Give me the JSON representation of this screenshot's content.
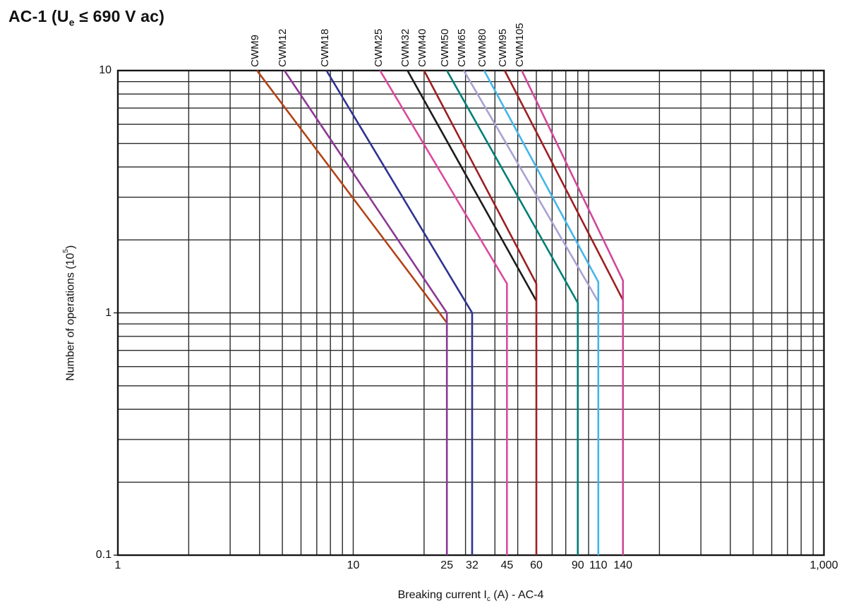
{
  "title": {
    "prefix": "AC-1 (U",
    "sub": "e",
    "suffix": " ≤ 690 V ac)"
  },
  "x_axis": {
    "title_prefix": "Breaking current I",
    "title_sub": "c",
    "title_suffix": " (A) - AC-4"
  },
  "y_axis": {
    "title_prefix": "Number of operations (10",
    "title_sup": "5",
    "title_suffix": ")"
  },
  "chart_data": {
    "type": "line",
    "title": "AC-1 (Ue ≤ 690 V ac)",
    "xlabel": "Breaking current Ic (A) - AC-4",
    "ylabel": "Number of operations (10^5)",
    "xscale": "log",
    "yscale": "log",
    "xlim": [
      1,
      1000
    ],
    "ylim": [
      0.1,
      10
    ],
    "grid": "full logarithmic minor grid on both axes, black lines",
    "legend_position": "rotated series labels above top axis at each curve entry point",
    "x_ticks": [
      {
        "value": 1,
        "label": "1"
      },
      {
        "value": 10,
        "label": "10"
      },
      {
        "value": 25,
        "label": "25"
      },
      {
        "value": 32,
        "label": "32"
      },
      {
        "value": 45,
        "label": "45"
      },
      {
        "value": 60,
        "label": "60"
      },
      {
        "value": 90,
        "label": "90"
      },
      {
        "value": 110,
        "label": "110"
      },
      {
        "value": 140,
        "label": "140"
      },
      {
        "value": 1000,
        "label": "1,000"
      }
    ],
    "y_ticks": [
      {
        "value": 10,
        "label": "10"
      },
      {
        "value": 1,
        "label": "1"
      },
      {
        "value": 0.1,
        "label": "0.1"
      }
    ],
    "series": [
      {
        "name": "CWM9",
        "color": "#b24319",
        "points": [
          [
            3.9,
            10
          ],
          [
            25,
            0.91
          ]
        ]
      },
      {
        "name": "CWM12",
        "color": "#8c3894",
        "points": [
          [
            5.1,
            10
          ],
          [
            25,
            1.0
          ],
          [
            25,
            0.1
          ]
        ]
      },
      {
        "name": "CWM18",
        "color": "#303390",
        "points": [
          [
            7.7,
            10
          ],
          [
            32,
            1.0
          ],
          [
            32,
            0.1
          ]
        ]
      },
      {
        "name": "CWM25",
        "color": "#da4a9f",
        "points": [
          [
            13,
            10
          ],
          [
            45,
            1.32
          ],
          [
            45,
            0.1
          ]
        ]
      },
      {
        "name": "CWM32",
        "color": "#1c1c1c",
        "points": [
          [
            17,
            10
          ],
          [
            60,
            1.12
          ]
        ]
      },
      {
        "name": "CWM40",
        "color": "#9d1f22",
        "points": [
          [
            20,
            10
          ],
          [
            60,
            1.32
          ],
          [
            60,
            0.1
          ]
        ]
      },
      {
        "name": "CWM50",
        "color": "#037f76",
        "points": [
          [
            25,
            10
          ],
          [
            90,
            1.1
          ],
          [
            90,
            0.1
          ]
        ]
      },
      {
        "name": "CWM65",
        "color": "#a8a1d3",
        "points": [
          [
            29.5,
            10
          ],
          [
            110,
            1.11
          ]
        ]
      },
      {
        "name": "CWM80",
        "color": "#45b5e8",
        "points": [
          [
            36,
            10
          ],
          [
            110,
            1.34
          ],
          [
            110,
            0.1
          ]
        ]
      },
      {
        "name": "CWM95",
        "color": "#9d1f22",
        "points": [
          [
            44,
            10
          ],
          [
            140,
            1.13
          ]
        ]
      },
      {
        "name": "CWM105",
        "color": "#d0489b",
        "points": [
          [
            52,
            10
          ],
          [
            140,
            1.36
          ],
          [
            140,
            0.1
          ]
        ]
      }
    ]
  }
}
